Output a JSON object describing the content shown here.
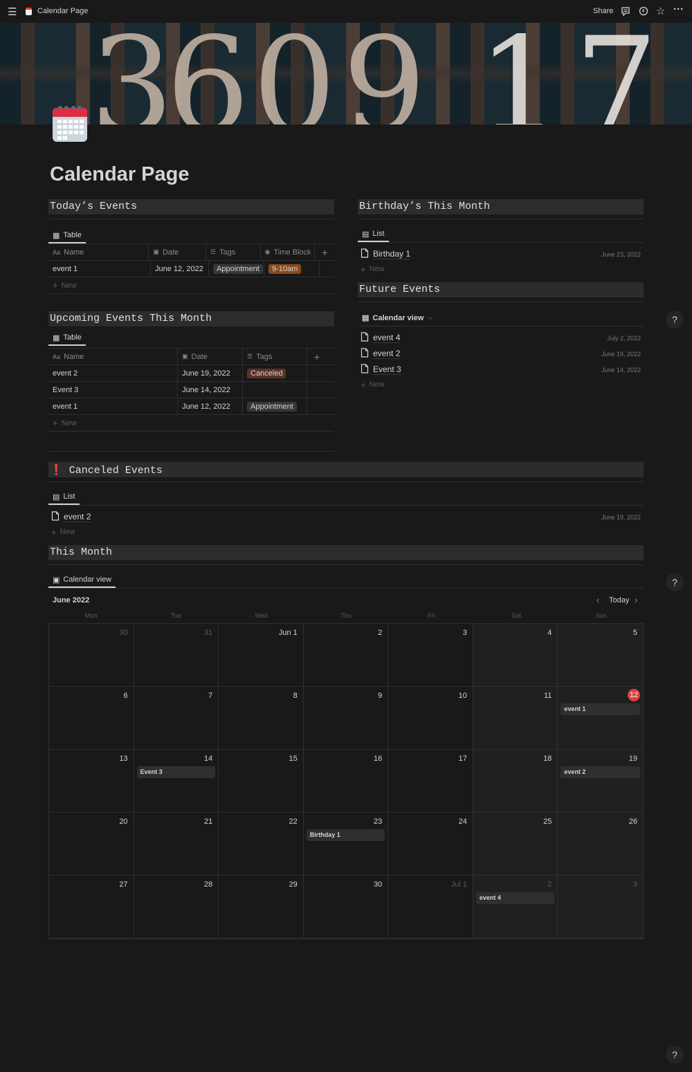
{
  "topbar": {
    "title": "Calendar Page",
    "share": "Share"
  },
  "page": {
    "title": "Calendar Page"
  },
  "cover": {
    "digits": [
      "3",
      "6",
      "0",
      "9",
      "1",
      "7"
    ]
  },
  "todays_events": {
    "heading": "Today’s Events",
    "tab": "Table",
    "new": "New",
    "columns": [
      "Name",
      "Date",
      "Tags",
      "Time Block"
    ],
    "rows": [
      {
        "name": "event 1",
        "date": "June 12, 2022",
        "tag": "Appointment",
        "time_block": "9-10am"
      }
    ]
  },
  "upcoming": {
    "heading": "Upcoming Events This Month",
    "tab": "Table",
    "new": "New",
    "columns": [
      "Name",
      "Date",
      "Tags"
    ],
    "rows": [
      {
        "name": "event 2",
        "date": "June 19, 2022",
        "tag": "Canceled"
      },
      {
        "name": "Event 3",
        "date": "June 14, 2022",
        "tag": ""
      },
      {
        "name": "event 1",
        "date": "June 12, 2022",
        "tag": "Appointment"
      }
    ]
  },
  "birthdays": {
    "heading": "Birthday’s This Month",
    "tab": "List",
    "new": "New",
    "items": [
      {
        "name": "Birthday 1",
        "date": "June 23, 2022"
      }
    ]
  },
  "future": {
    "heading": "Future Events",
    "tab": "Calendar view",
    "new": "New",
    "items": [
      {
        "name": "event 4",
        "date": "July 2, 2022"
      },
      {
        "name": "event 2",
        "date": "June 19, 2022"
      },
      {
        "name": "Event 3",
        "date": "June 14, 2022"
      }
    ]
  },
  "canceled": {
    "heading": "Canceled Events",
    "tab": "List",
    "new": "New",
    "items": [
      {
        "name": "event 2",
        "date": "June 19, 2022"
      }
    ]
  },
  "this_month": {
    "heading": "This Month",
    "tab": "Calendar view",
    "month": "June 2022",
    "today_label": "Today",
    "weekdays": [
      "Mon",
      "Tue",
      "Wed",
      "Thu",
      "Fri",
      "Sat",
      "Sun"
    ],
    "days": [
      {
        "d": "30",
        "muted": true
      },
      {
        "d": "31",
        "muted": true
      },
      {
        "d": "Jun 1"
      },
      {
        "d": "2"
      },
      {
        "d": "3"
      },
      {
        "d": "4"
      },
      {
        "d": "5"
      },
      {
        "d": "6"
      },
      {
        "d": "7"
      },
      {
        "d": "8"
      },
      {
        "d": "9"
      },
      {
        "d": "10"
      },
      {
        "d": "11"
      },
      {
        "d": "12",
        "today": true,
        "event": "event 1"
      },
      {
        "d": "13"
      },
      {
        "d": "14",
        "event": "Event 3"
      },
      {
        "d": "15"
      },
      {
        "d": "16"
      },
      {
        "d": "17"
      },
      {
        "d": "18"
      },
      {
        "d": "19",
        "event": "event 2"
      },
      {
        "d": "20"
      },
      {
        "d": "21"
      },
      {
        "d": "22"
      },
      {
        "d": "23",
        "event": "Birthday 1"
      },
      {
        "d": "24"
      },
      {
        "d": "25"
      },
      {
        "d": "26"
      },
      {
        "d": "27"
      },
      {
        "d": "28"
      },
      {
        "d": "29"
      },
      {
        "d": "30"
      },
      {
        "d": "Jul 1",
        "muted": true
      },
      {
        "d": "2",
        "muted": true,
        "event": "event 4"
      },
      {
        "d": "3",
        "muted": true
      }
    ]
  },
  "help": "?",
  "colors": {
    "canceled_tag": "#5c3328",
    "time_block_tag": "#8b4a1c",
    "today_badge": "#e03e3e",
    "callout_icon": "#e03e3e"
  }
}
